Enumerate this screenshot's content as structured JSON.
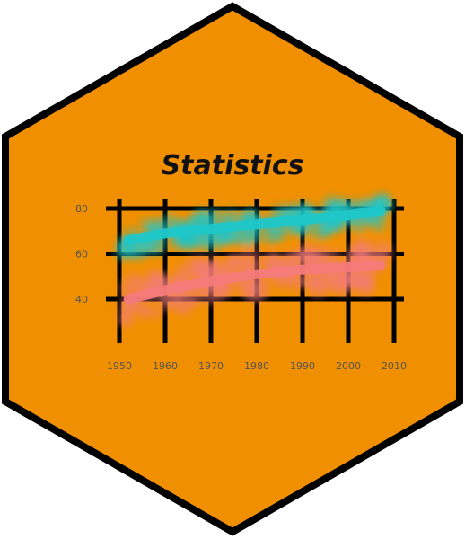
{
  "title": "Statistics",
  "colors": {
    "hex_fill": "#f08f00",
    "hex_border": "#000000",
    "series_upper": "#1fc7c9",
    "series_lower": "#f47a7a",
    "grid": "#000000"
  },
  "chart_data": {
    "type": "scatter",
    "xlim": [
      1950,
      2010
    ],
    "ylim": [
      20,
      90
    ],
    "x_ticks": [
      "1950",
      "1960",
      "1970",
      "1980",
      "1990",
      "2000",
      "2010"
    ],
    "y_ticks": [
      "40",
      "60",
      "80"
    ],
    "grid": true,
    "series": [
      {
        "color": "#1fc7c9",
        "trend": [
          [
            1952,
            66
          ],
          [
            1960,
            69
          ],
          [
            1970,
            71
          ],
          [
            1980,
            73
          ],
          [
            1990,
            75
          ],
          [
            2000,
            77
          ],
          [
            2007,
            79
          ]
        ]
      },
      {
        "color": "#f47a7a",
        "trend": [
          [
            1952,
            40
          ],
          [
            1960,
            44
          ],
          [
            1970,
            48
          ],
          [
            1980,
            51
          ],
          [
            1990,
            53
          ],
          [
            2000,
            54
          ],
          [
            2007,
            55
          ]
        ]
      }
    ]
  }
}
